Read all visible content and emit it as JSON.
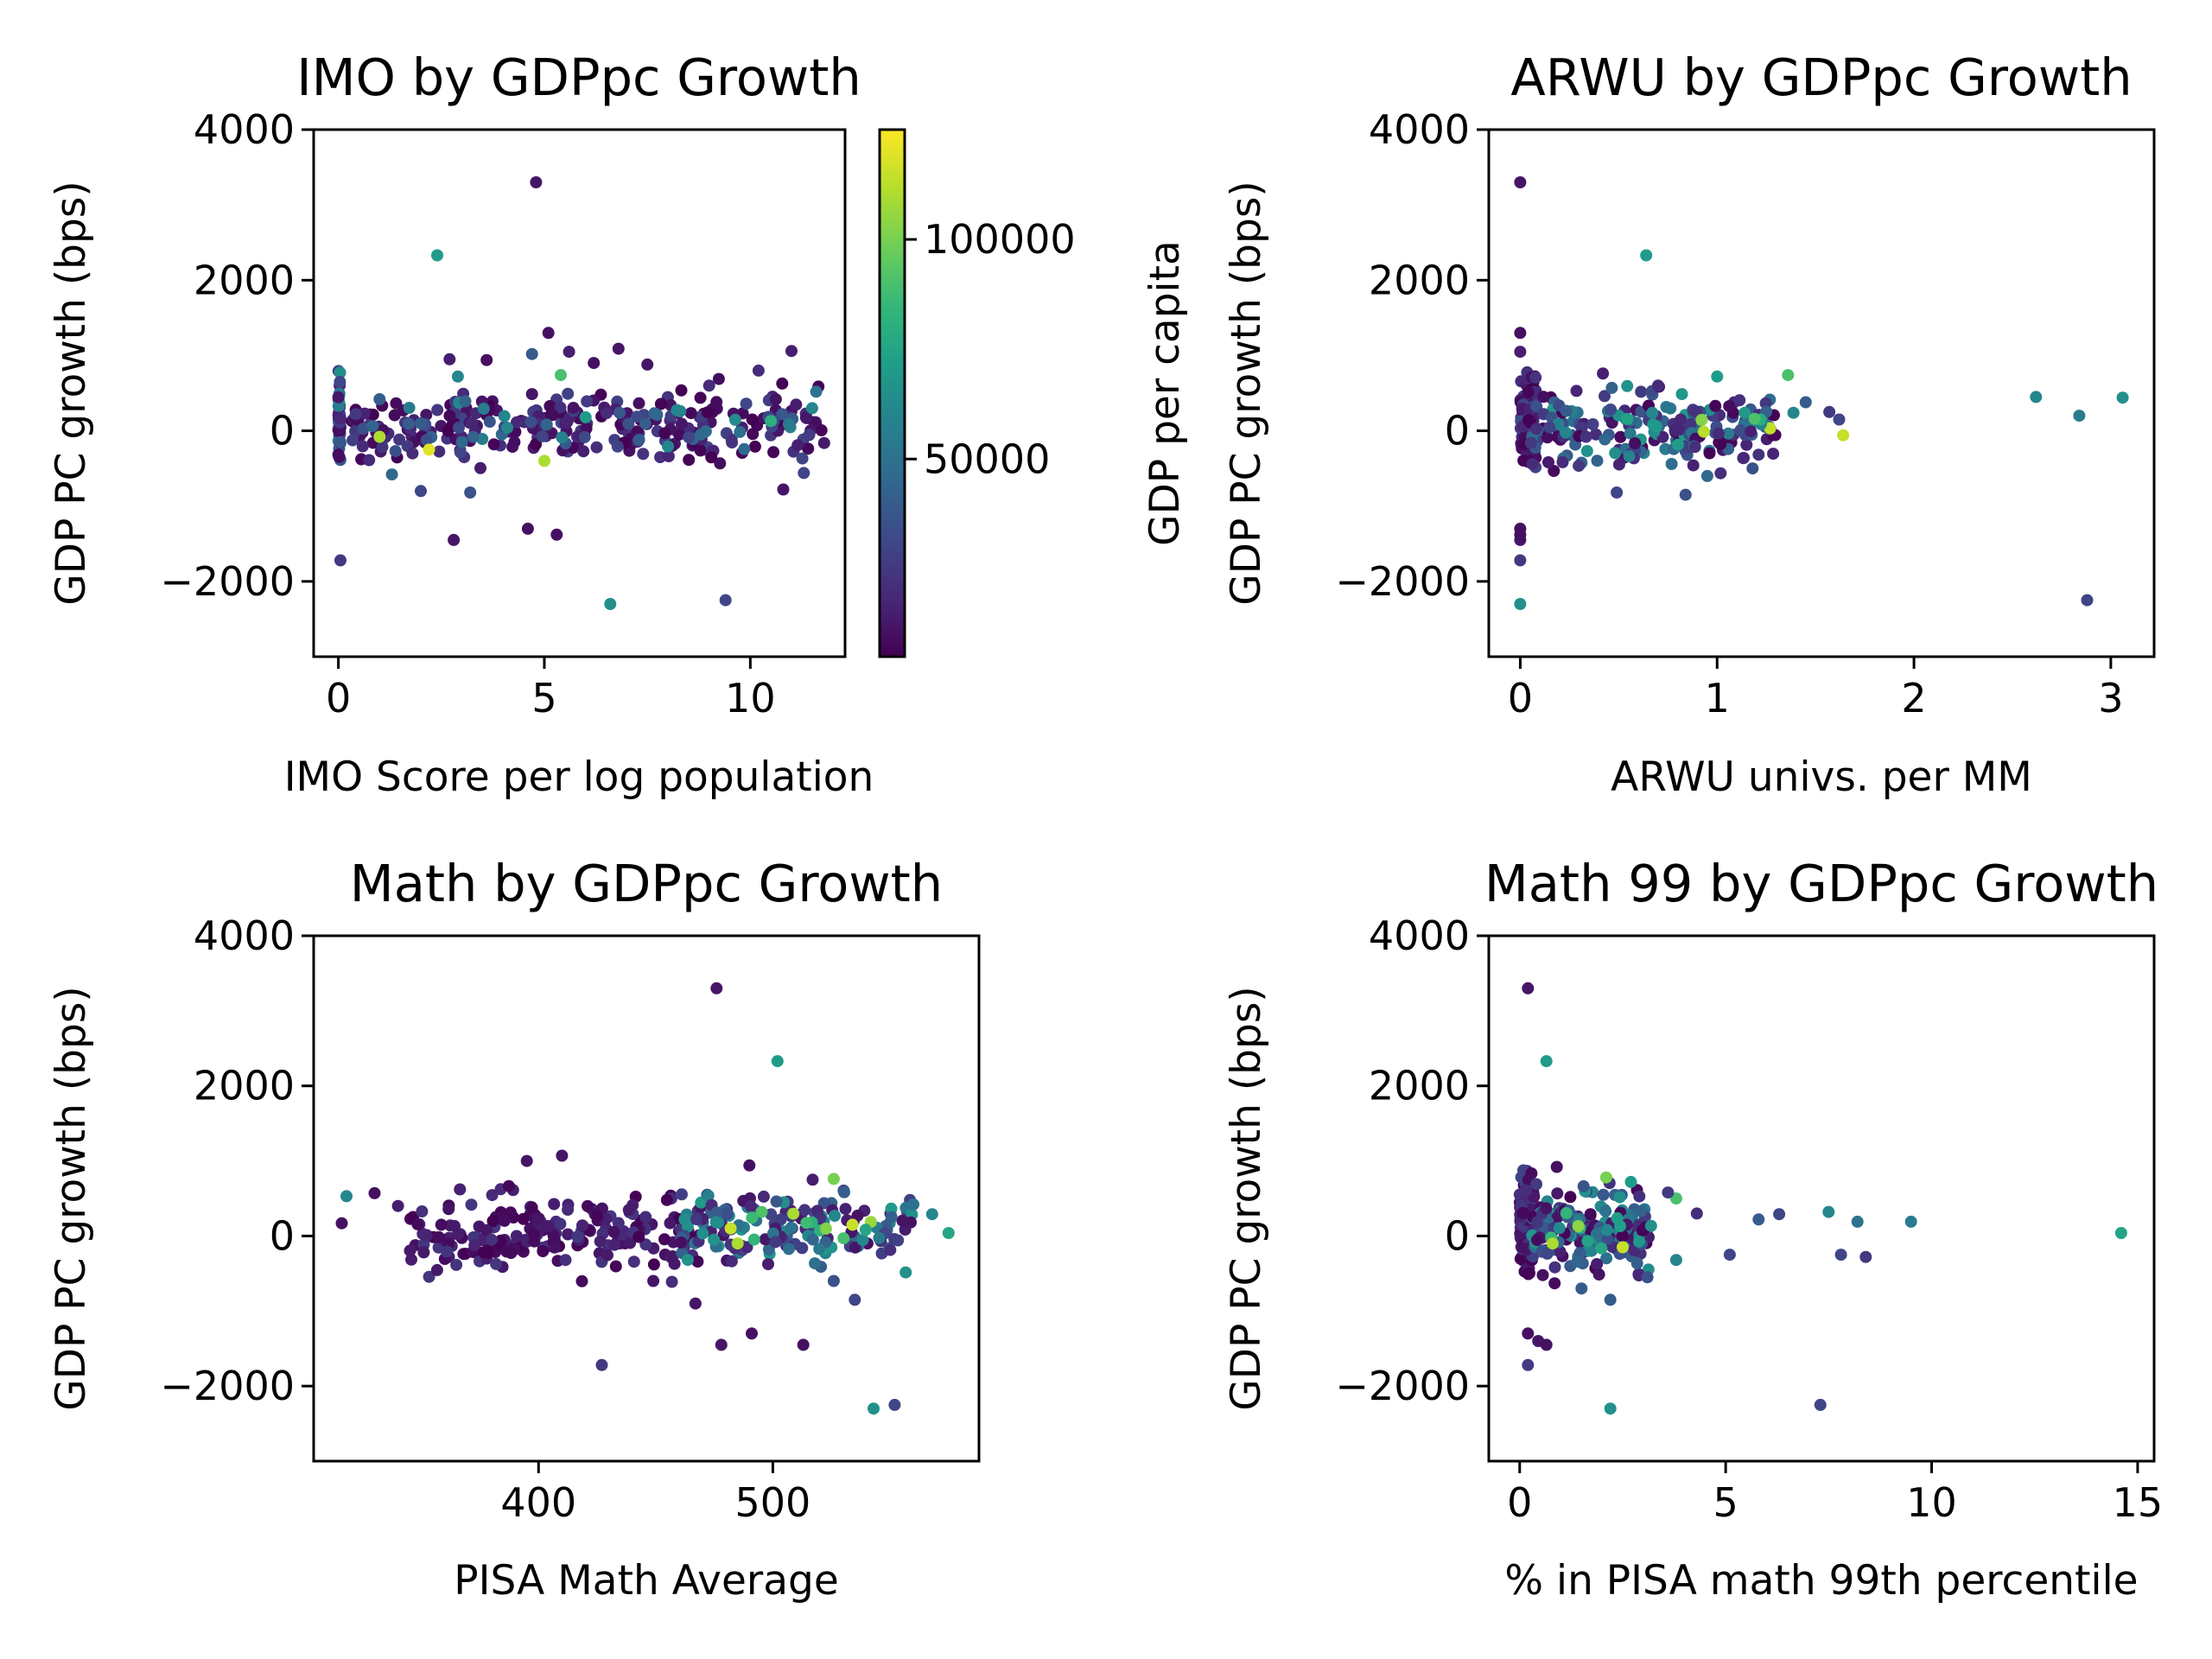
{
  "figure": {
    "colors": {
      "viridis": [
        "#440154",
        "#482878",
        "#3e4989",
        "#31688e",
        "#26828e",
        "#1f9e89",
        "#35b779",
        "#6ece58",
        "#b5de2b",
        "#fde725"
      ]
    },
    "colorbar": {
      "label": "GDP per capita",
      "ticks": [
        50000,
        100000
      ],
      "tick_labels": [
        "50000",
        "100000"
      ],
      "range": [
        5000,
        125000
      ]
    }
  },
  "chart_data": [
    {
      "type": "scatter",
      "title": "IMO by GDPpc Growth",
      "xlabel": "IMO Score per log population",
      "ylabel": "GDP PC growth (bps)",
      "xlim": [
        -0.6,
        12.3
      ],
      "ylim": [
        -3000,
        4000
      ],
      "xticks": [
        0,
        5,
        10
      ],
      "xtick_labels": [
        "0",
        "5",
        "10"
      ],
      "yticks": [
        -2000,
        0,
        2000,
        4000
      ],
      "ytick_labels": [
        "−2000",
        "0",
        "2000",
        "4000"
      ],
      "point_fields": [
        "x",
        "growth_bps",
        "gdp_per_capita"
      ],
      "points": [
        [
          4.8,
          3300,
          12000
        ],
        [
          2.4,
          2330,
          70000
        ],
        [
          6.6,
          -2300,
          65000
        ],
        [
          9.4,
          -2250,
          30000
        ],
        [
          0.05,
          -1720,
          25000
        ],
        [
          2.8,
          -1450,
          12000
        ],
        [
          4.6,
          -1300,
          10000
        ],
        [
          5.3,
          -1380,
          10000
        ],
        [
          3.2,
          -820,
          35000
        ],
        [
          2.0,
          -800,
          30000
        ],
        [
          10.8,
          -780,
          12000
        ],
        [
          11.3,
          -560,
          30000
        ],
        [
          1.3,
          -580,
          45000
        ],
        [
          1.8,
          -300,
          20000
        ],
        [
          2.2,
          -250,
          120000
        ],
        [
          5.0,
          -400,
          110000
        ],
        [
          1.0,
          -80,
          110000
        ],
        [
          5.4,
          740,
          90000
        ],
        [
          4.7,
          1020,
          40000
        ],
        [
          5.1,
          1300,
          10000
        ],
        [
          5.6,
          1050,
          15000
        ],
        [
          6.8,
          1090,
          12000
        ],
        [
          11.0,
          1060,
          15000
        ],
        [
          2.7,
          950,
          15000
        ],
        [
          2.9,
          720,
          60000
        ],
        [
          3.6,
          940,
          10000
        ],
        [
          6.2,
          900,
          10000
        ],
        [
          7.5,
          880,
          12000
        ],
        [
          10.2,
          800,
          20000
        ],
        [
          11.6,
          520,
          50000
        ],
        [
          11.5,
          300,
          60000
        ],
        [
          1.0,
          420,
          40000
        ],
        [
          9.0,
          600,
          20000
        ],
        [
          2.0,
          100,
          40000
        ],
        [
          4.1,
          40,
          60000
        ],
        [
          6.0,
          180,
          70000
        ],
        [
          8.3,
          260,
          60000
        ],
        [
          10.5,
          130,
          80000
        ],
        [
          9.9,
          360,
          30000
        ],
        [
          3.0,
          -150,
          45000
        ],
        [
          7.3,
          -120,
          40000
        ],
        [
          8.8,
          -50,
          45000
        ]
      ],
      "generated_cloud": [
        {
          "x_range": [
            0,
            0.05
          ],
          "y_range": [
            -700,
            880
          ],
          "gdp_range": [
            8000,
            70000
          ],
          "count": 55
        },
        {
          "x_range": [
            0.3,
            11.8
          ],
          "y_range": [
            -600,
            750
          ],
          "gdp_range": [
            5000,
            30000
          ],
          "count": 260
        },
        {
          "x_range": [
            0.5,
            11.5
          ],
          "y_range": [
            -500,
            600
          ],
          "gdp_range": [
            30000,
            65000
          ],
          "count": 45
        }
      ]
    },
    {
      "type": "scatter",
      "title": "ARWU by GDPpc Growth",
      "xlabel": "ARWU univs. per MM",
      "ylabel": "GDP PC growth (bps)",
      "xlim": [
        -0.16,
        3.22
      ],
      "ylim": [
        -3000,
        4000
      ],
      "xticks": [
        0,
        1,
        2,
        3
      ],
      "xtick_labels": [
        "0",
        "1",
        "2",
        "3"
      ],
      "yticks": [
        -2000,
        0,
        2000,
        4000
      ],
      "ytick_labels": [
        "−2000",
        "0",
        "2000",
        "4000"
      ],
      "point_fields": [
        "x",
        "growth_bps",
        "gdp_per_capita"
      ],
      "points": [
        [
          0.0,
          3300,
          12000
        ],
        [
          0.64,
          2330,
          70000
        ],
        [
          0.0,
          -2300,
          65000
        ],
        [
          2.88,
          -2250,
          30000
        ],
        [
          0.0,
          -1720,
          25000
        ],
        [
          0.0,
          -1450,
          12000
        ],
        [
          0.0,
          -1300,
          10000
        ],
        [
          0.0,
          -1380,
          10000
        ],
        [
          0.0,
          1300,
          10000
        ],
        [
          0.0,
          1050,
          15000
        ],
        [
          2.62,
          450,
          60000
        ],
        [
          3.06,
          440,
          65000
        ],
        [
          2.84,
          200,
          55000
        ],
        [
          1.64,
          -60,
          115000
        ],
        [
          1.36,
          740,
          90000
        ],
        [
          1.62,
          150,
          30000
        ],
        [
          1.57,
          250,
          25000
        ],
        [
          1.45,
          380,
          40000
        ],
        [
          1.0,
          720,
          70000
        ],
        [
          0.84,
          -850,
          35000
        ],
        [
          0.49,
          -820,
          30000
        ],
        [
          0.95,
          -600,
          45000
        ],
        [
          1.18,
          -500,
          35000
        ],
        [
          0.42,
          760,
          15000
        ],
        [
          0.7,
          600,
          20000
        ]
      ],
      "generated_cloud": [
        {
          "x_range": [
            0,
            0.08
          ],
          "y_range": [
            -750,
            1000
          ],
          "gdp_range": [
            5000,
            35000
          ],
          "count": 110
        },
        {
          "x_range": [
            0.05,
            1.3
          ],
          "y_range": [
            -700,
            720
          ],
          "gdp_range": [
            5000,
            70000
          ],
          "count": 200
        },
        {
          "x_range": [
            0.4,
            1.4
          ],
          "y_range": [
            -200,
            400
          ],
          "gdp_range": [
            60000,
            115000
          ],
          "count": 12
        }
      ]
    },
    {
      "type": "scatter",
      "title": "Math by GDPpc Growth",
      "xlabel": "PISA Math Average",
      "ylabel": "GDP PC growth (bps)",
      "xlim": [
        304,
        588
      ],
      "ylim": [
        -3000,
        4000
      ],
      "xticks": [
        400,
        500
      ],
      "xtick_labels": [
        "400",
        "500"
      ],
      "yticks": [
        -2000,
        0,
        2000,
        4000
      ],
      "ytick_labels": [
        "−2000",
        "0",
        "2000",
        "4000"
      ],
      "point_fields": [
        "x",
        "growth_bps",
        "gdp_per_capita"
      ],
      "points": [
        [
          476,
          3300,
          12000
        ],
        [
          502,
          2330,
          70000
        ],
        [
          543,
          -2300,
          65000
        ],
        [
          552,
          -2250,
          30000
        ],
        [
          427,
          -1720,
          25000
        ],
        [
          478,
          -1450,
          12000
        ],
        [
          491,
          -1300,
          10000
        ],
        [
          513,
          -1450,
          10000
        ],
        [
          490,
          940,
          10000
        ],
        [
          526,
          760,
          100000
        ],
        [
          517,
          750,
          15000
        ],
        [
          575,
          40,
          75000
        ],
        [
          568,
          290,
          60000
        ],
        [
          316,
          170,
          10000
        ],
        [
          318,
          530,
          60000
        ],
        [
          330,
          570,
          10000
        ],
        [
          340,
          400,
          15000
        ],
        [
          410,
          1070,
          12000
        ],
        [
          395,
          1000,
          12000
        ],
        [
          535,
          -850,
          30000
        ],
        [
          526,
          -600,
          35000
        ],
        [
          449,
          -600,
          12000
        ],
        [
          467,
          -900,
          12000
        ],
        [
          482,
          100,
          115000
        ],
        [
          485,
          -100,
          110000
        ],
        [
          534,
          150,
          115000
        ],
        [
          560,
          420,
          50000
        ]
      ],
      "generated_cloud": [
        {
          "x_range": [
            345,
            470
          ],
          "y_range": [
            -750,
            750
          ],
          "gdp_range": [
            5000,
            25000
          ],
          "count": 200
        },
        {
          "x_range": [
            460,
            560
          ],
          "y_range": [
            -600,
            800
          ],
          "gdp_range": [
            10000,
            70000
          ],
          "count": 150
        },
        {
          "x_range": [
            470,
            545
          ],
          "y_range": [
            -300,
            500
          ],
          "gdp_range": [
            60000,
            110000
          ],
          "count": 15
        }
      ]
    },
    {
      "type": "scatter",
      "title": "Math 99 by GDPpc Growth",
      "xlabel": "% in PISA math 99th percentile",
      "ylabel": "GDP PC growth (bps)",
      "xlim": [
        -0.75,
        15.4
      ],
      "ylim": [
        -3000,
        4000
      ],
      "xticks": [
        0,
        5,
        10,
        15
      ],
      "xtick_labels": [
        "0",
        "5",
        "10",
        "15"
      ],
      "yticks": [
        -2000,
        0,
        2000,
        4000
      ],
      "ytick_labels": [
        "−2000",
        "0",
        "2000",
        "4000"
      ],
      "point_fields": [
        "x",
        "growth_bps",
        "gdp_per_capita"
      ],
      "points": [
        [
          0.2,
          3300,
          12000
        ],
        [
          0.65,
          2330,
          70000
        ],
        [
          2.2,
          -2300,
          65000
        ],
        [
          7.3,
          -2250,
          30000
        ],
        [
          0.2,
          -1720,
          25000
        ],
        [
          0.2,
          -1300,
          10000
        ],
        [
          0.45,
          -1400,
          12000
        ],
        [
          0.65,
          -1450,
          10000
        ],
        [
          14.6,
          40,
          75000
        ],
        [
          9.5,
          190,
          55000
        ],
        [
          8.2,
          190,
          50000
        ],
        [
          7.5,
          320,
          60000
        ],
        [
          6.3,
          290,
          30000
        ],
        [
          5.8,
          220,
          40000
        ],
        [
          7.8,
          -250,
          30000
        ],
        [
          8.4,
          -280,
          25000
        ],
        [
          5.1,
          -250,
          30000
        ],
        [
          3.8,
          -320,
          60000
        ],
        [
          2.2,
          -850,
          40000
        ],
        [
          3.1,
          -550,
          35000
        ],
        [
          1.5,
          -700,
          40000
        ],
        [
          2.1,
          780,
          100000
        ],
        [
          2.7,
          720,
          70000
        ],
        [
          3.8,
          500,
          90000
        ],
        [
          3.6,
          580,
          25000
        ],
        [
          4.3,
          300,
          20000
        ],
        [
          0.9,
          920,
          10000
        ],
        [
          2.5,
          -150,
          115000
        ],
        [
          0.8,
          -100,
          110000
        ]
      ],
      "generated_cloud": [
        {
          "x_range": [
            0,
            0.35
          ],
          "y_range": [
            -750,
            1100
          ],
          "gdp_range": [
            5000,
            30000
          ],
          "count": 150
        },
        {
          "x_range": [
            0.3,
            3.2
          ],
          "y_range": [
            -700,
            800
          ],
          "gdp_range": [
            5000,
            70000
          ],
          "count": 180
        },
        {
          "x_range": [
            0.5,
            2.6
          ],
          "y_range": [
            -300,
            400
          ],
          "gdp_range": [
            60000,
            110000
          ],
          "count": 10
        }
      ]
    }
  ]
}
